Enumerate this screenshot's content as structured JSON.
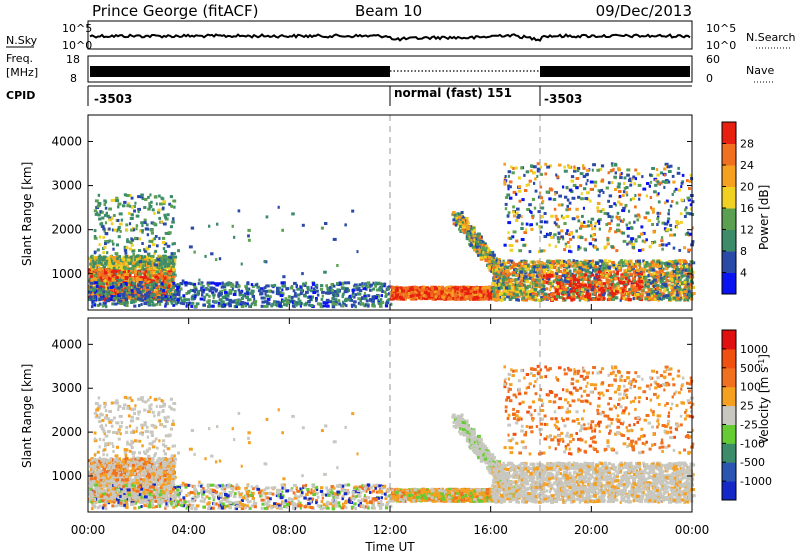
{
  "header": {
    "station": "Prince George (fitACF)",
    "beam": "Beam 10",
    "date": "09/Dec/2013"
  },
  "noise_panel": {
    "left_label": "N.Sky",
    "left_ticks": [
      "10^5",
      "10^0"
    ],
    "right_label": "N.Search",
    "right_ticks": [
      "10^5",
      "10^0"
    ]
  },
  "freq_panel": {
    "left_label_1": "Freq.",
    "left_label_2": "[MHz]",
    "left_ticks": [
      "18",
      "8"
    ],
    "right_label": "Nave",
    "right_ticks": [
      "60",
      "0"
    ]
  },
  "cpid_panel": {
    "label": "CPID",
    "segments": [
      "-3503",
      "normal (fast) 151",
      "-3503"
    ]
  },
  "colors": {
    "power_scale": [
      "#0a14f0",
      "#2a4aa8",
      "#3c8c6a",
      "#5aa050",
      "#f0d020",
      "#f5a020",
      "#f07020",
      "#e82010"
    ],
    "velocity_scale": [
      "#1428c8",
      "#2a55b0",
      "#3c8c6a",
      "#66cc33",
      "#c8c8c0",
      "#f5a020",
      "#f07020",
      "#f05010",
      "#e01010"
    ]
  },
  "chart_data": [
    {
      "type": "heatmap",
      "ylabel": "Slant Range [km]",
      "ylim": [
        180,
        4600
      ],
      "yticks": [
        "1000",
        "2000",
        "3000",
        "4000"
      ],
      "xlim": [
        0,
        24
      ],
      "colorbar_label": "Power [dB]",
      "colorbar_ticks": [
        "28",
        "24",
        "20",
        "16",
        "12",
        "8",
        "4"
      ],
      "colorbar_range": [
        0,
        32
      ]
    },
    {
      "type": "heatmap",
      "ylabel": "Slant Range [km]",
      "ylim": [
        180,
        4600
      ],
      "yticks": [
        "1000",
        "2000",
        "3000",
        "4000"
      ],
      "xlim": [
        0,
        24
      ],
      "xticks": [
        "00:00",
        "04:00",
        "08:00",
        "12:00",
        "16:00",
        "20:00",
        "00:00"
      ],
      "xlabel": "Time UT",
      "colorbar_label": "Velocity [m s^-1]",
      "colorbar_ticks": [
        "1000",
        "500",
        "100",
        "25",
        "-25",
        "-100",
        "-500",
        "-1000"
      ]
    }
  ]
}
